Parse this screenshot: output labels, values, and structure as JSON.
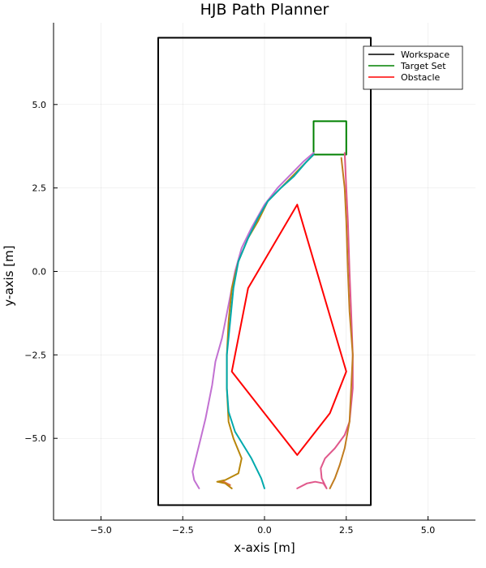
{
  "chart_data": {
    "type": "line",
    "title": "HJB Path Planner",
    "xlabel": "x-axis [m]",
    "ylabel": "y-axis [m]",
    "xlim": [
      -6.45,
      6.45
    ],
    "ylim": [
      -7.45,
      7.45
    ],
    "grid": true,
    "legend_position": "top-right",
    "x_ticks": [
      {
        "value": -5,
        "label": "−5.0"
      },
      {
        "value": -2.5,
        "label": "−2.5"
      },
      {
        "value": 0,
        "label": "0.0"
      },
      {
        "value": 2.5,
        "label": "2.5"
      },
      {
        "value": 5,
        "label": "5.0"
      }
    ],
    "y_ticks": [
      {
        "value": 5,
        "label": "5.0"
      },
      {
        "value": 2.5,
        "label": "2.5"
      },
      {
        "value": 0,
        "label": "0.0"
      },
      {
        "value": -2.5,
        "label": "−2.5"
      },
      {
        "value": -5,
        "label": "−5.0"
      }
    ],
    "series": [
      {
        "name": "Workspace",
        "color": "#000000",
        "legend": true,
        "points": [
          [
            -3.25,
            -7
          ],
          [
            3.25,
            -7
          ],
          [
            3.25,
            7
          ],
          [
            -3.25,
            7
          ],
          [
            -3.25,
            -7
          ]
        ]
      },
      {
        "name": "Target Set",
        "color": "#008000",
        "legend": true,
        "points": [
          [
            1.5,
            3.5
          ],
          [
            2.5,
            3.5
          ],
          [
            2.5,
            4.5
          ],
          [
            1.5,
            4.5
          ],
          [
            1.5,
            3.5
          ]
        ]
      },
      {
        "name": "Obstacle",
        "color": "#ff0000",
        "legend": true,
        "points": [
          [
            1,
            2
          ],
          [
            -0.5,
            -0.5
          ],
          [
            -1,
            -3
          ],
          [
            1,
            -5.5
          ],
          [
            2,
            -4.25
          ],
          [
            2.5,
            -3
          ],
          [
            1,
            2
          ]
        ]
      },
      {
        "color": "#c271d2",
        "legend": false,
        "points": [
          [
            -2,
            -6.5
          ],
          [
            -2.15,
            -6.25
          ],
          [
            -2.2,
            -6
          ],
          [
            -2.1,
            -5.6
          ],
          [
            -1.95,
            -5
          ],
          [
            -1.8,
            -4.4
          ],
          [
            -1.6,
            -3.4
          ],
          [
            -1.5,
            -2.7
          ],
          [
            -1.3,
            -2
          ],
          [
            -1.1,
            -1
          ],
          [
            -0.9,
            0
          ],
          [
            -0.7,
            0.7
          ],
          [
            -0.4,
            1.3
          ],
          [
            0,
            2
          ],
          [
            0.4,
            2.5
          ],
          [
            0.8,
            2.9
          ],
          [
            1.2,
            3.3
          ],
          [
            1.5,
            3.55
          ]
        ]
      },
      {
        "color": "#e26f46",
        "legend": false,
        "points": [
          [
            -1.05,
            -6.4
          ],
          [
            -1.25,
            -6.3
          ],
          [
            -1.4,
            -6.3
          ]
        ]
      },
      {
        "color": "#b8860b",
        "legend": false,
        "points": [
          [
            -1,
            -6.5
          ],
          [
            -1.2,
            -6.35
          ],
          [
            -1.45,
            -6.3
          ],
          [
            -1.2,
            -6.25
          ],
          [
            -0.8,
            -6.05
          ],
          [
            -0.7,
            -5.6
          ],
          [
            -0.95,
            -5
          ],
          [
            -1.1,
            -4.5
          ],
          [
            -1.15,
            -3.5
          ],
          [
            -1.15,
            -2.5
          ],
          [
            -1.1,
            -1.5
          ],
          [
            -1,
            -0.5
          ],
          [
            -0.8,
            0.3
          ],
          [
            -0.5,
            1
          ],
          [
            -0.2,
            1.5
          ],
          [
            0.1,
            2.1
          ],
          [
            0.5,
            2.5
          ],
          [
            0.9,
            2.9
          ],
          [
            1.3,
            3.3
          ],
          [
            1.5,
            3.5
          ]
        ]
      },
      {
        "color": "#00a9ad",
        "legend": false,
        "points": [
          [
            0,
            -6.5
          ],
          [
            -0.1,
            -6.2
          ],
          [
            -0.4,
            -5.6
          ],
          [
            -0.9,
            -4.8
          ],
          [
            -1.1,
            -4.2
          ],
          [
            -1.15,
            -3.5
          ],
          [
            -1.15,
            -2.5
          ],
          [
            -1.05,
            -1.5
          ],
          [
            -0.95,
            -0.5
          ],
          [
            -0.8,
            0.3
          ],
          [
            -0.5,
            1
          ],
          [
            -0.2,
            1.6
          ],
          [
            0.1,
            2.1
          ],
          [
            0.5,
            2.5
          ],
          [
            0.9,
            2.85
          ],
          [
            1.25,
            3.25
          ],
          [
            1.5,
            3.5
          ]
        ]
      },
      {
        "color": "#e0588b",
        "legend": false,
        "points": [
          [
            1,
            -6.5
          ],
          [
            1.3,
            -6.35
          ],
          [
            1.55,
            -6.3
          ],
          [
            1.8,
            -6.35
          ],
          [
            1.9,
            -6.5
          ],
          [
            1.75,
            -6.2
          ],
          [
            1.72,
            -5.9
          ],
          [
            1.85,
            -5.6
          ],
          [
            2.15,
            -5.3
          ],
          [
            2.45,
            -4.9
          ],
          [
            2.6,
            -4.5
          ],
          [
            2.7,
            -3.5
          ],
          [
            2.7,
            -2.5
          ],
          [
            2.65,
            -1.2
          ],
          [
            2.6,
            0
          ],
          [
            2.55,
            1.5
          ],
          [
            2.5,
            2.5
          ],
          [
            2.45,
            3.55
          ]
        ]
      },
      {
        "color": "#c17c1f",
        "legend": false,
        "points": [
          [
            2,
            -6.5
          ],
          [
            2.15,
            -6.2
          ],
          [
            2.3,
            -5.8
          ],
          [
            2.45,
            -5.3
          ],
          [
            2.6,
            -4.5
          ],
          [
            2.65,
            -3.5
          ],
          [
            2.7,
            -2.5
          ],
          [
            2.6,
            -1.2
          ],
          [
            2.55,
            0
          ],
          [
            2.5,
            1.5
          ],
          [
            2.45,
            2.5
          ],
          [
            2.35,
            3.4
          ]
        ]
      }
    ]
  }
}
